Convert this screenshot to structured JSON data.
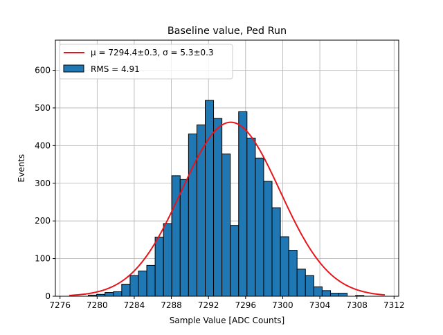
{
  "chart_data": {
    "type": "bar",
    "title": "Baseline value, Ped Run",
    "xlabel": "Sample Value [ADC Counts]",
    "ylabel": "Events",
    "xlim": [
      7275.5,
      7312.5
    ],
    "ylim": [
      0,
      680
    ],
    "xticks": [
      7276,
      7280,
      7284,
      7288,
      7292,
      7296,
      7300,
      7304,
      7308,
      7312
    ],
    "yticks": [
      0,
      100,
      200,
      300,
      400,
      500,
      600
    ],
    "grid": true,
    "legend_position": "top-left",
    "bin_width": 0.9,
    "bar_color": "#1f77b4",
    "fit_color": "#e8141b",
    "histogram": {
      "name": "RMS = 4.91",
      "bin_centers": [
        7279.5,
        7280.4,
        7281.3,
        7282.2,
        7283.1,
        7284.0,
        7284.9,
        7285.8,
        7286.7,
        7287.6,
        7288.5,
        7289.4,
        7290.3,
        7291.2,
        7292.1,
        7293.0,
        7293.9,
        7294.8,
        7295.7,
        7296.6,
        7297.5,
        7298.4,
        7299.3,
        7300.2,
        7301.1,
        7302.0,
        7302.9,
        7303.8,
        7304.7,
        7305.6,
        7306.5,
        7307.4,
        7308.3
      ],
      "counts": [
        3,
        5,
        10,
        12,
        32,
        55,
        67,
        82,
        157,
        193,
        320,
        310,
        431,
        455,
        520,
        472,
        378,
        188,
        490,
        420,
        367,
        305,
        235,
        158,
        122,
        72,
        55,
        25,
        15,
        8,
        8,
        0,
        2
      ]
    },
    "fit": {
      "label_mu": "μ = 7294.4±0.3, σ = 5.3±0.3",
      "mu": 7294.4,
      "sigma": 5.3,
      "amplitude": 462,
      "x_range": [
        7277.0,
        7311.0
      ]
    }
  }
}
